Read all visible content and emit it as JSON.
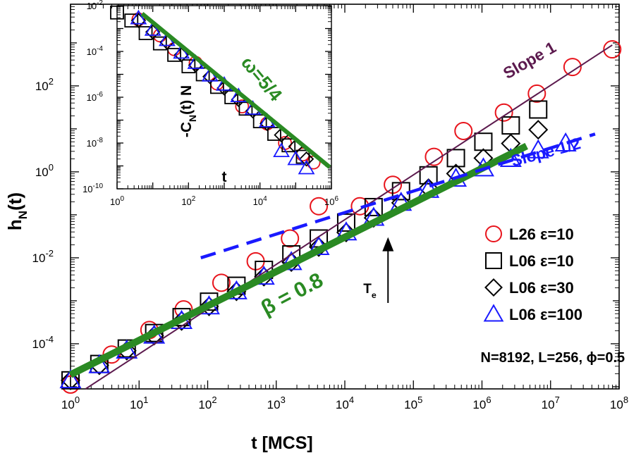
{
  "chart_data": [
    {
      "id": "main",
      "type": "scatter",
      "log_x": true,
      "log_y": true,
      "xlabel": "t [MCS]",
      "ylabel": "h",
      "ylabel_sub": "N",
      "ylabel_tail": "(t)",
      "xlim": [
        0,
        8
      ],
      "ylim": [
        -5.05,
        3.9
      ],
      "x_ticks": [
        {
          "base": "10",
          "exp": "0",
          "value": 0
        },
        {
          "base": "10",
          "exp": "1",
          "value": 1
        },
        {
          "base": "10",
          "exp": "2",
          "value": 2
        },
        {
          "base": "10",
          "exp": "3",
          "value": 3
        },
        {
          "base": "10",
          "exp": "4",
          "value": 4
        },
        {
          "base": "10",
          "exp": "5",
          "value": 5
        },
        {
          "base": "10",
          "exp": "6",
          "value": 6
        },
        {
          "base": "10",
          "exp": "7",
          "value": 7
        },
        {
          "base": "10",
          "exp": "8",
          "value": 8
        }
      ],
      "y_ticks": [
        {
          "base": "10",
          "exp": "-4",
          "value": -4
        },
        {
          "base": "10",
          "exp": "-2",
          "value": -2
        },
        {
          "base": "10",
          "exp": "0",
          "value": 0
        },
        {
          "base": "10",
          "exp": "2",
          "value": 2
        }
      ],
      "series": [
        {
          "name": "L26 ε=10",
          "marker": "circle",
          "color": "#e8141c",
          "log_x": [
            0.0,
            0.6,
            1.15,
            1.65,
            2.2,
            2.7,
            3.2,
            3.62,
            4.22,
            4.7,
            5.3,
            5.73,
            6.32,
            6.8,
            7.32,
            7.9
          ],
          "log_y": [
            -4.95,
            -4.25,
            -3.68,
            -3.2,
            -2.58,
            -2.08,
            -1.55,
            -0.8,
            -0.8,
            -0.3,
            0.35,
            0.95,
            1.38,
            1.82,
            2.44,
            2.85
          ]
        },
        {
          "name": "L06 ε=10",
          "marker": "square",
          "color": "#000000",
          "log_x": [
            0.0,
            0.42,
            0.82,
            1.22,
            1.62,
            2.02,
            2.42,
            2.82,
            3.22,
            3.62,
            4.02,
            4.42,
            4.82,
            5.22,
            5.62,
            6.02,
            6.42,
            6.82
          ],
          "log_y": [
            -4.85,
            -4.47,
            -4.11,
            -3.75,
            -3.38,
            -3.02,
            -2.65,
            -2.28,
            -1.92,
            -1.55,
            -1.18,
            -0.82,
            -0.45,
            -0.08,
            0.32,
            0.7,
            1.08,
            1.45
          ]
        },
        {
          "name": "L06 ε=30",
          "marker": "diamond",
          "color": "#000000",
          "log_x": [
            0.0,
            0.42,
            0.82,
            1.22,
            1.62,
            2.02,
            2.42,
            2.82,
            3.22,
            3.62,
            4.02,
            4.42,
            4.82,
            5.22,
            5.62,
            6.02,
            6.42,
            6.82
          ],
          "log_y": [
            -4.85,
            -4.5,
            -4.16,
            -3.81,
            -3.47,
            -3.13,
            -2.78,
            -2.44,
            -2.1,
            -1.75,
            -1.41,
            -1.07,
            -0.72,
            -0.38,
            -0.04,
            0.32,
            0.66,
            0.98
          ]
        },
        {
          "name": "L06 ε=100",
          "marker": "triangle",
          "color": "#1a1aff",
          "log_x": [
            0.0,
            0.42,
            0.82,
            1.22,
            1.62,
            2.02,
            2.42,
            2.82,
            3.22,
            3.62,
            4.02,
            4.42,
            4.82,
            5.22,
            5.62,
            6.02,
            6.42,
            6.82,
            7.22
          ],
          "log_y": [
            -4.85,
            -4.5,
            -4.16,
            -3.81,
            -3.47,
            -3.13,
            -2.78,
            -2.44,
            -2.1,
            -1.75,
            -1.41,
            -1.07,
            -0.72,
            -0.42,
            -0.16,
            0.08,
            0.3,
            0.5,
            0.66
          ]
        }
      ],
      "lines": [
        {
          "name": "slope-1-line",
          "color": "#5c1a4e",
          "width": 2,
          "dash": "",
          "from": [
            0.22,
            -5.05
          ],
          "to": [
            7.9,
            2.95
          ]
        },
        {
          "name": "beta-line",
          "color": "#2a8a23",
          "width": 10,
          "dash": "",
          "from": [
            0.0,
            -4.72
          ],
          "to": [
            6.65,
            0.6
          ]
        },
        {
          "name": "slope-half-line",
          "color": "#1a1aff",
          "width": 4.5,
          "dash": "22,12",
          "from": [
            1.9,
            -2.0
          ],
          "to": [
            7.65,
            0.88
          ]
        },
        {
          "name": "te-arrow",
          "color": "#000000",
          "width": 2,
          "dash": "",
          "from": [
            4.63,
            -3.05
          ],
          "to": [
            4.63,
            -1.52
          ],
          "arrow": true
        }
      ],
      "annotations": [
        {
          "name": "slope-1-label",
          "text": "Slope 1",
          "color": "#5c1a4e",
          "at": [
            6.37,
            2.15
          ],
          "rotate": -30,
          "size": 23
        },
        {
          "name": "slope-half-label",
          "text": "Slope 1/2",
          "color": "#1a1aff",
          "at": [
            6.45,
            0.12
          ],
          "rotate": -15,
          "size": 23
        },
        {
          "name": "beta-label",
          "text": "β = 0.8",
          "color": "#2a8a23",
          "at": [
            2.85,
            -3.35
          ],
          "rotate": -28,
          "size": 30
        },
        {
          "name": "te-label",
          "text": "T",
          "sub": "e",
          "color": "#000000",
          "at": [
            4.27,
            -2.82
          ],
          "rotate": 0,
          "size": 19
        },
        {
          "name": "params-label",
          "text": "N=8192, L=256, ϕ=0.5",
          "color": "#000000",
          "at": [
            5.98,
            -4.43
          ],
          "rotate": 0,
          "size": 20
        }
      ],
      "legend": {
        "position": "lower-right",
        "entries": [
          "L26 ε=10",
          "L06 ε=10",
          "L06 ε=30",
          "L06 ε=100"
        ]
      }
    },
    {
      "id": "inset",
      "type": "scatter",
      "log_x": true,
      "log_y": true,
      "xlabel": "t",
      "ylabel": "-C",
      "ylabel_sub": "N",
      "ylabel_tail": "(t) N",
      "xlim": [
        0,
        6
      ],
      "ylim": [
        -10,
        -2
      ],
      "x_ticks": [
        {
          "base": "10",
          "exp": "0",
          "value": 0
        },
        {
          "base": "10",
          "exp": "2",
          "value": 2
        },
        {
          "base": "10",
          "exp": "4",
          "value": 4
        },
        {
          "base": "10",
          "exp": "6",
          "value": 6
        }
      ],
      "y_ticks": [
        {
          "base": "10",
          "exp": "-2",
          "value": -2
        },
        {
          "base": "10",
          "exp": "-4",
          "value": -4
        },
        {
          "base": "10",
          "exp": "-6",
          "value": -6
        },
        {
          "base": "10",
          "exp": "-8",
          "value": -8
        },
        {
          "base": "10",
          "exp": "-10",
          "value": -10
        }
      ],
      "series": [
        {
          "name": "L26 ε=10",
          "marker": "circle",
          "color": "#e8141c",
          "log_x": [
            0.6,
            1.2,
            1.6,
            2.2,
            2.8,
            3.5,
            4.2,
            4.7,
            5.2,
            5.5
          ],
          "log_y": [
            -2.6,
            -3.3,
            -3.9,
            -4.5,
            -5.4,
            -6.4,
            -7.15,
            -8.0,
            -8.5,
            -8.85
          ]
        },
        {
          "name": "L06 ε=10",
          "marker": "square",
          "color": "#000000",
          "log_x": [
            0.0,
            0.4,
            0.8,
            1.2,
            1.6,
            2.0,
            2.4,
            2.8,
            3.2,
            3.6,
            4.0,
            4.4,
            4.8,
            5.2
          ],
          "log_y": [
            -2.3,
            -2.65,
            -3.2,
            -3.65,
            -4.15,
            -4.65,
            -5.0,
            -5.55,
            -6.0,
            -6.5,
            -7.05,
            -7.6,
            -8.1,
            -8.6
          ]
        },
        {
          "name": "L06 ε=30",
          "marker": "diamond",
          "color": "#000000",
          "log_x": [
            0.6,
            1.0,
            1.4,
            1.8,
            2.2,
            2.6,
            3.0,
            3.4,
            3.8,
            4.2,
            4.6,
            5.0,
            5.3
          ],
          "log_y": [
            -2.65,
            -3.15,
            -3.6,
            -4.15,
            -4.6,
            -5.1,
            -5.6,
            -6.1,
            -6.6,
            -7.15,
            -7.65,
            -8.15,
            -8.7
          ]
        },
        {
          "name": "L06 ε=100",
          "marker": "triangle",
          "color": "#1a1aff",
          "log_x": [
            0.6,
            1.0,
            1.4,
            1.8,
            2.2,
            2.6,
            3.0,
            3.4,
            3.8,
            4.2,
            4.6,
            5.0,
            5.3
          ],
          "log_y": [
            -2.55,
            -3.05,
            -3.5,
            -4.05,
            -4.5,
            -5.05,
            -5.45,
            -5.95,
            -6.5,
            -7.05,
            -8.35,
            -8.7,
            -9.1
          ]
        }
      ],
      "lines": [
        {
          "name": "omega-line",
          "color": "#2a8a23",
          "width": 6,
          "dash": "",
          "from": [
            0.7,
            -2.35
          ],
          "to": [
            5.95,
            -9.05
          ]
        }
      ],
      "annotations": [
        {
          "name": "omega-label",
          "text": "ω=5/4",
          "color": "#2a8a23",
          "at": [
            3.45,
            -4.5
          ],
          "rotate": 50,
          "size": 26
        }
      ]
    }
  ]
}
